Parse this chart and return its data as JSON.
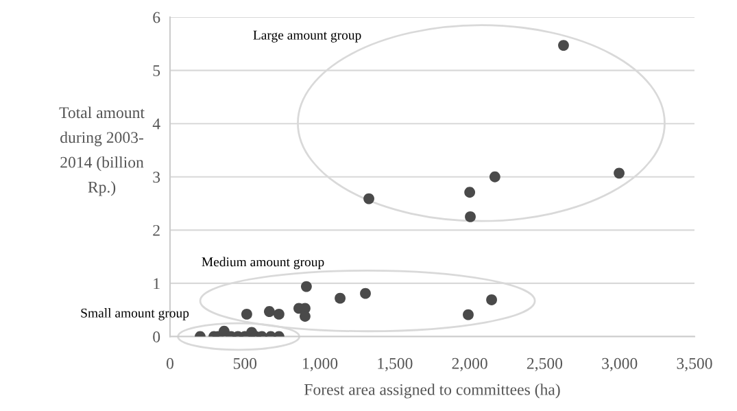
{
  "chart_data": {
    "type": "scatter",
    "xlabel": "Forest area assigned to committees (ha)",
    "ylabel": "Total amount\nduring 2003-\n2014 (billion\nRp.)",
    "x": [
      2626,
      2997,
      2168,
      2000,
      2004,
      1327,
      910,
      1135,
      1304,
      1990,
      2146,
      512,
      663,
      727,
      860,
      901,
      901,
      201,
      293,
      320,
      361,
      407,
      453,
      499,
      545,
      572,
      613,
      672,
      727
    ],
    "series": [
      {
        "color": "#4a4a4a",
        "values": [
          5.47,
          3.07,
          3.0,
          2.71,
          2.25,
          2.59,
          0.94,
          0.72,
          0.81,
          0.41,
          0.69,
          0.42,
          0.47,
          0.42,
          0.53,
          0.53,
          0.38,
          0.0,
          0.0,
          0.0,
          0.1,
          0.0,
          0.0,
          0.0,
          0.08,
          0.0,
          0.0,
          0.0,
          0.0
        ]
      }
    ],
    "xlim": [
      0,
      3500
    ],
    "xticks": [
      0,
      {
        "value": 500,
        "label": "500"
      },
      {
        "value": 1000,
        "label": "1,000"
      },
      {
        "value": 1500,
        "label": "1,500"
      },
      {
        "value": 2000,
        "label": "2,000"
      },
      {
        "value": 2500,
        "label": "2,500"
      },
      {
        "value": 3000,
        "label": "3,000"
      },
      {
        "value": 3500,
        "label": "3,500"
      }
    ],
    "ylim": [
      0,
      6
    ],
    "yticks": [
      0,
      1,
      2,
      3,
      4,
      5,
      6
    ],
    "grid": "y",
    "marker": "circle",
    "annotations": [
      "Large amount group",
      "Medium amount group",
      "Small amount group"
    ]
  }
}
